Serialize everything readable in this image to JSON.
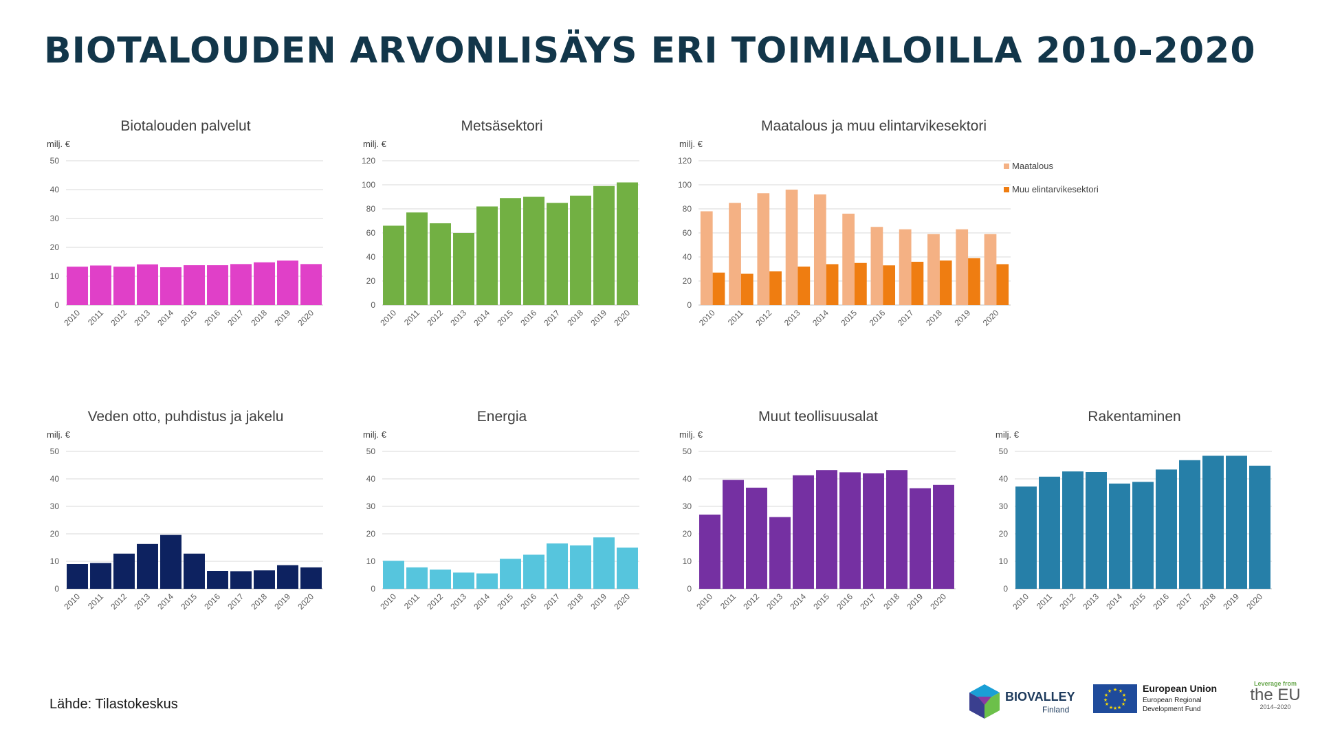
{
  "page": {
    "title": "BIOTALOUDEN ARVONLISÄYS ERI TOIMIALOILLA 2010-2020",
    "source": "Lähde: Tilastokeskus"
  },
  "logos": {
    "biovalley_name": "BIOVALLEY",
    "biovalley_sub": "Finland",
    "eu_line1": "European Union",
    "eu_line2": "European Regional",
    "eu_line3": "Development Fund",
    "leverage_line1": "Leverage from",
    "leverage_line2": "the EU",
    "leverage_line3": "2014–2020"
  },
  "chart_data": [
    {
      "id": "palvelut",
      "type": "bar",
      "title": "Biotalouden palvelut",
      "ylabel": "milj. €",
      "categories": [
        "2010",
        "2011",
        "2012",
        "2013",
        "2014",
        "2015",
        "2016",
        "2017",
        "2018",
        "2019",
        "2020"
      ],
      "ylim": [
        0,
        50
      ],
      "yticks": [
        0,
        10,
        20,
        30,
        40,
        50
      ],
      "grid": true,
      "series": [
        {
          "color": "#e040c8",
          "values": [
            13.3,
            13.7,
            13.3,
            14.1,
            13.1,
            13.8,
            13.8,
            14.2,
            14.8,
            15.4,
            14.2
          ]
        }
      ]
    },
    {
      "id": "metsa",
      "type": "bar",
      "title": "Metsäsektori",
      "ylabel": "milj. €",
      "categories": [
        "2010",
        "2011",
        "2012",
        "2013",
        "2014",
        "2015",
        "2016",
        "2017",
        "2018",
        "2019",
        "2020"
      ],
      "ylim": [
        0,
        120
      ],
      "yticks": [
        0,
        20,
        40,
        60,
        80,
        100,
        120
      ],
      "grid": true,
      "series": [
        {
          "color": "#72b043",
          "values": [
            66,
            77,
            68,
            60,
            82,
            89,
            90,
            85,
            91,
            99,
            102
          ]
        }
      ]
    },
    {
      "id": "maatalous",
      "type": "bar",
      "title": "Maatalous ja muu elintarvikesektori",
      "ylabel": "milj. €",
      "categories": [
        "2010",
        "2011",
        "2012",
        "2013",
        "2014",
        "2015",
        "2016",
        "2017",
        "2018",
        "2019",
        "2020"
      ],
      "ylim": [
        0,
        120
      ],
      "yticks": [
        0,
        20,
        40,
        60,
        80,
        100,
        120
      ],
      "grid": true,
      "legend": "top-right",
      "series": [
        {
          "name": "Maatalous",
          "color": "#f4b184",
          "values": [
            78,
            85,
            93,
            96,
            92,
            76,
            65,
            63,
            59,
            63,
            59
          ]
        },
        {
          "name": "Muu elintarvikesektori",
          "color": "#ef7d11",
          "values": [
            27,
            26,
            28,
            32,
            34,
            35,
            33,
            36,
            37,
            39,
            34
          ]
        }
      ]
    },
    {
      "id": "vesi",
      "type": "bar",
      "title": "Veden otto, puhdistus ja jakelu",
      "ylabel": "milj. €",
      "categories": [
        "2010",
        "2011",
        "2012",
        "2013",
        "2014",
        "2015",
        "2016",
        "2017",
        "2018",
        "2019",
        "2020"
      ],
      "ylim": [
        0,
        50
      ],
      "yticks": [
        0,
        10,
        20,
        30,
        40,
        50
      ],
      "grid": true,
      "series": [
        {
          "color": "#0d2260",
          "values": [
            9.0,
            9.4,
            12.8,
            16.3,
            19.6,
            12.8,
            6.5,
            6.4,
            6.7,
            8.6,
            7.8
          ]
        }
      ]
    },
    {
      "id": "energia",
      "type": "bar",
      "title": "Energia",
      "ylabel": "milj. €",
      "categories": [
        "2010",
        "2011",
        "2012",
        "2013",
        "2014",
        "2015",
        "2016",
        "2017",
        "2018",
        "2019",
        "2020"
      ],
      "ylim": [
        0,
        50
      ],
      "yticks": [
        0,
        10,
        20,
        30,
        40,
        50
      ],
      "grid": true,
      "series": [
        {
          "color": "#56c5dd",
          "values": [
            10.2,
            7.8,
            7.0,
            5.9,
            5.6,
            10.9,
            12.4,
            16.5,
            15.8,
            18.7,
            15.0
          ]
        }
      ]
    },
    {
      "id": "muut",
      "type": "bar",
      "title": "Muut teollisuusalat",
      "ylabel": "milj. €",
      "categories": [
        "2010",
        "2011",
        "2012",
        "2013",
        "2014",
        "2015",
        "2016",
        "2017",
        "2018",
        "2019",
        "2020"
      ],
      "ylim": [
        0,
        50
      ],
      "yticks": [
        0,
        10,
        20,
        30,
        40,
        50
      ],
      "grid": true,
      "series": [
        {
          "color": "#7530a2",
          "values": [
            27.0,
            39.6,
            36.8,
            26.1,
            41.3,
            43.2,
            42.4,
            42.0,
            43.2,
            36.6,
            37.8
          ]
        }
      ]
    },
    {
      "id": "rakentaminen",
      "type": "bar",
      "title": "Rakentaminen",
      "ylabel": "milj. €",
      "categories": [
        "2010",
        "2011",
        "2012",
        "2013",
        "2014",
        "2015",
        "2016",
        "2017",
        "2018",
        "2019",
        "2020"
      ],
      "ylim": [
        0,
        50
      ],
      "yticks": [
        0,
        10,
        20,
        30,
        40,
        50
      ],
      "grid": true,
      "series": [
        {
          "color": "#267fa8",
          "values": [
            37.2,
            40.8,
            42.7,
            42.5,
            38.3,
            38.9,
            43.4,
            46.8,
            48.4,
            48.4,
            44.8
          ]
        }
      ]
    }
  ]
}
